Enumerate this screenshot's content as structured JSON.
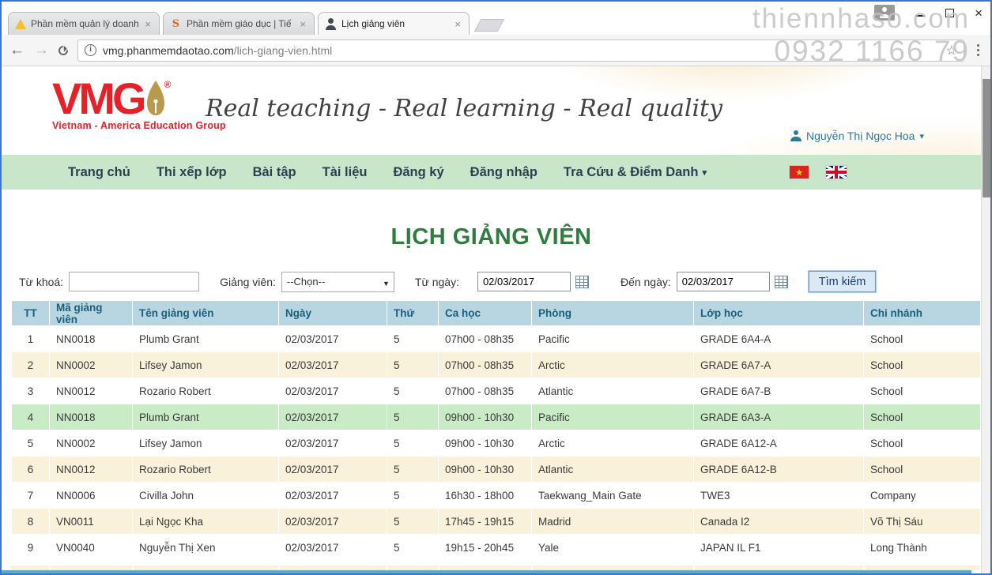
{
  "watermark": {
    "line1": "thiennhaso.com",
    "line2": "0932 1166 79"
  },
  "browser": {
    "tabs": [
      {
        "title": "Phần mềm quản lý doanh",
        "icon": "warning-triangle-icon",
        "active": false
      },
      {
        "title": "Phần mềm giáo dục | Tiế",
        "icon": "orange-swirl-icon",
        "active": false
      },
      {
        "title": "Lịch giảng viên",
        "icon": "person-icon",
        "active": true
      }
    ],
    "url_host": "vmg.phanmemdaotao.com",
    "url_path": "/lich-giang-vien.html"
  },
  "icons": {
    "close": "×",
    "star": "☆",
    "back": "←",
    "forward": "→",
    "caret_down": "▾",
    "info": "i",
    "vn_star": "★",
    "select_caret": "▼",
    "orange_s": "S"
  },
  "banner": {
    "logo_text": "VMG",
    "logo_reg": "®",
    "logo_subtitle": "Vietnam - America Education Group",
    "tagline": "Real teaching - Real learning - Real quality",
    "user_name": "Nguyễn Thị Ngọc Hoa"
  },
  "nav": {
    "items": [
      {
        "label": "Trang chủ",
        "caret": false
      },
      {
        "label": "Thi xếp lớp",
        "caret": false
      },
      {
        "label": "Bài tập",
        "caret": false
      },
      {
        "label": "Tài liệu",
        "caret": false
      },
      {
        "label": "Đăng ký",
        "caret": false
      },
      {
        "label": "Đăng nhập",
        "caret": false
      },
      {
        "label": "Tra Cứu & Điểm Danh",
        "caret": true
      }
    ]
  },
  "page": {
    "title": "LỊCH GIẢNG VIÊN"
  },
  "filters": {
    "keyword_label": "Từ khoá:",
    "keyword_value": "",
    "teacher_label": "Giảng viên:",
    "teacher_value": "--Chọn--",
    "from_label": "Từ ngày:",
    "from_value": "02/03/2017",
    "to_label": "Đến ngày:",
    "to_value": "02/03/2017",
    "search_button": "Tìm kiếm"
  },
  "table": {
    "headers": [
      "TT",
      "Mã giảng viên",
      "Tên giảng viên",
      "Ngày",
      "Thứ",
      "Ca học",
      "Phòng",
      "Lớp học",
      "Chi nhánh"
    ],
    "header_keys": [
      "tt",
      "ma-giang-vien",
      "ten-giang-vien",
      "ngay",
      "thu",
      "ca-hoc",
      "phong",
      "lop-hoc",
      "chi-nhanh"
    ],
    "rows": [
      [
        "1",
        "NN0018",
        "Plumb Grant",
        "02/03/2017",
        "5",
        "07h00 - 08h35",
        "Pacific",
        "GRADE 6A4-A",
        "School"
      ],
      [
        "2",
        "NN0002",
        "Lifsey Jamon",
        "02/03/2017",
        "5",
        "07h00 - 08h35",
        "Arctic",
        "GRADE 6A7-A",
        "School"
      ],
      [
        "3",
        "NN0012",
        "Rozario Robert",
        "02/03/2017",
        "5",
        "07h00 - 08h35",
        "Atlantic",
        "GRADE 6A7-B",
        "School"
      ],
      [
        "4",
        "NN0018",
        "Plumb Grant",
        "02/03/2017",
        "5",
        "09h00 - 10h30",
        "Pacific",
        "GRADE 6A3-A",
        "School"
      ],
      [
        "5",
        "NN0002",
        "Lifsey Jamon",
        "02/03/2017",
        "5",
        "09h00 - 10h30",
        "Arctic",
        "GRADE 6A12-A",
        "School"
      ],
      [
        "6",
        "NN0012",
        "Rozario Robert",
        "02/03/2017",
        "5",
        "09h00 - 10h30",
        "Atlantic",
        "GRADE 6A12-B",
        "School"
      ],
      [
        "7",
        "NN0006",
        "Civilla John",
        "02/03/2017",
        "5",
        "16h30 - 18h00",
        "Taekwang_Main Gate",
        "TWE3",
        "Company"
      ],
      [
        "8",
        "VN0011",
        "Lại Ngọc Kha",
        "02/03/2017",
        "5",
        "17h45 - 19h15",
        "Madrid",
        "Canada I2",
        "Võ Thị Sáu"
      ],
      [
        "9",
        "VN0040",
        "Nguyễn Thị Xen",
        "02/03/2017",
        "5",
        "19h15 - 20h45",
        "Yale",
        "JAPAN IL F1",
        "Long Thành"
      ]
    ],
    "row_highlight": [
      "",
      "cream",
      "",
      "green",
      "",
      "cream",
      "",
      "cream",
      ""
    ]
  },
  "colors": {
    "title_green": "#2f7d3e",
    "nav_green": "#c8e7ca",
    "table_header_blue": "#b7d6e2",
    "table_header_text": "#1c5e7b",
    "row_cream": "#faf1da",
    "row_green": "#c9ebc5",
    "logo_red": "#e62129",
    "user_teal": "#2b7a9e",
    "window_border_blue": "#3a76cf"
  }
}
